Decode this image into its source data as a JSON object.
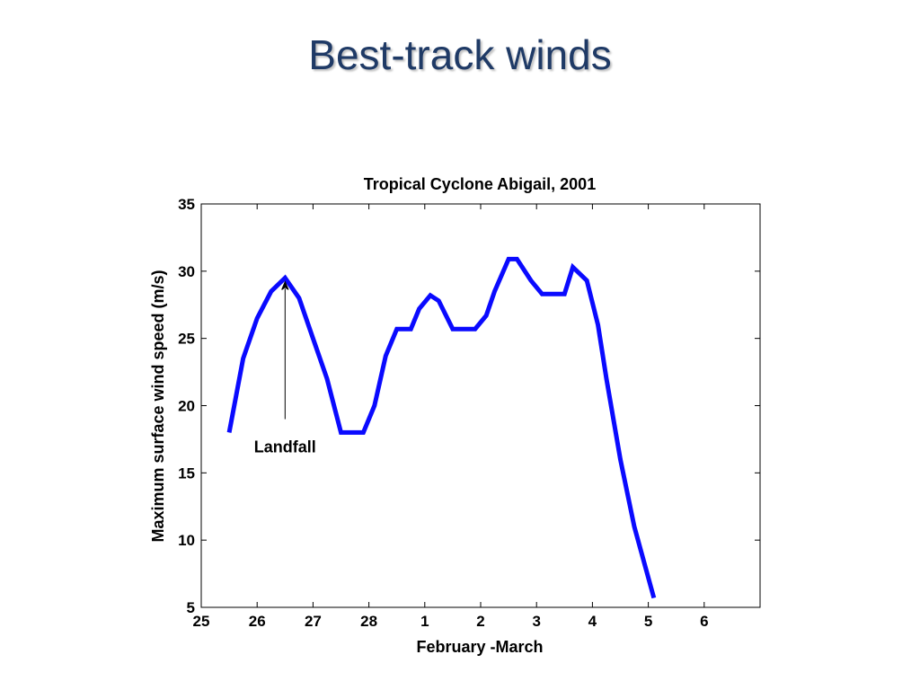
{
  "slide": {
    "title": "Best-track winds"
  },
  "chart_data": {
    "type": "line",
    "title": "Tropical Cyclone Abigail, 2001",
    "xlabel": "February -March",
    "ylabel": "Maximum surface wind speed (m/s)",
    "xlim": [
      25,
      35
    ],
    "ylim": [
      5,
      35
    ],
    "x_ticks": [
      25,
      26,
      27,
      28,
      29,
      30,
      31,
      32,
      33,
      34
    ],
    "x_tick_labels": [
      "25",
      "26",
      "27",
      "28",
      "1",
      "2",
      "3",
      "4",
      "5",
      "6"
    ],
    "y_ticks": [
      5,
      10,
      15,
      20,
      25,
      30,
      35
    ],
    "y_tick_labels": [
      "5",
      "10",
      "15",
      "20",
      "25",
      "30",
      "35"
    ],
    "grid": false,
    "series": [
      {
        "color": "#0a0aff",
        "x": [
          25.5,
          25.75,
          26.0,
          26.25,
          26.5,
          26.75,
          27.0,
          27.25,
          27.5,
          27.75,
          27.9,
          28.1,
          28.3,
          28.5,
          28.75,
          28.9,
          29.1,
          29.25,
          29.5,
          29.75,
          29.9,
          30.1,
          30.25,
          30.5,
          30.65,
          30.9,
          31.1,
          31.25,
          31.5,
          31.65,
          31.9,
          32.1,
          32.25,
          32.5,
          32.75,
          33.1
        ],
        "y": [
          18,
          23.5,
          26.5,
          28.5,
          29.5,
          28,
          25,
          22,
          18,
          18,
          18,
          20,
          23.7,
          25.7,
          25.7,
          27.2,
          28.2,
          27.8,
          25.7,
          25.7,
          25.7,
          26.7,
          28.5,
          30.9,
          30.9,
          29.3,
          28.3,
          28.3,
          28.3,
          30.3,
          29.3,
          26,
          22,
          16,
          11,
          5.7
        ]
      }
    ],
    "annotations": [
      {
        "text": "Landfall",
        "arrow_to": [
          26.5,
          28.7
        ],
        "arrow_from": [
          26.5,
          19
        ]
      }
    ]
  }
}
